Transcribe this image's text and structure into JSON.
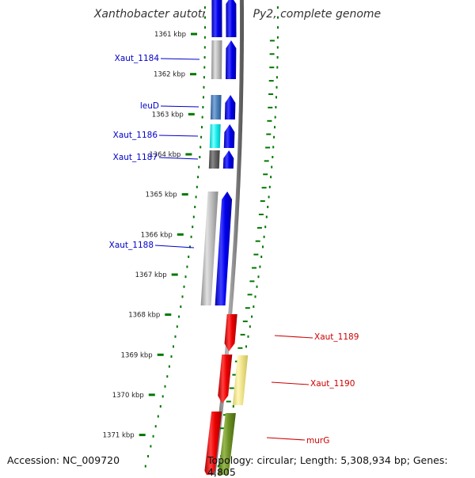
{
  "title": "Xanthobacter autotrophicus Py2, complete genome",
  "footer": {
    "accession": "Accession: NC_009720",
    "stats": "Topology: circular; Length: 5,308,934 bp; Genes: 4,805"
  },
  "ruler": [
    "1361 kbp",
    "1362 kbp",
    "1363 kbp",
    "1364 kbp",
    "1365 kbp",
    "1366 kbp",
    "1367 kbp",
    "1368 kbp",
    "1369 kbp",
    "1370 kbp",
    "1371 kbp"
  ],
  "genes": [
    {
      "name": "Xaut_1184",
      "strand": "reverse",
      "color": "#0000cc"
    },
    {
      "name": "leuD",
      "strand": "reverse",
      "color": "#0000cc"
    },
    {
      "name": "Xaut_1186",
      "strand": "reverse",
      "color": "#0000cc"
    },
    {
      "name": "Xaut_1187",
      "strand": "reverse",
      "color": "#0000cc"
    },
    {
      "name": "Xaut_1188",
      "strand": "reverse",
      "color": "#0000cc"
    },
    {
      "name": "Xaut_1189",
      "strand": "forward",
      "color": "#cc0000"
    },
    {
      "name": "Xaut_1190",
      "strand": "forward",
      "color": "#cc0000"
    },
    {
      "name": "murG",
      "strand": "forward",
      "color": "#cc0000"
    }
  ],
  "colors": {
    "cds_reverse": "#0000ee",
    "cds_forward": "#ee0000",
    "ruler_ticks": "#007700",
    "backbone": "#808080"
  }
}
